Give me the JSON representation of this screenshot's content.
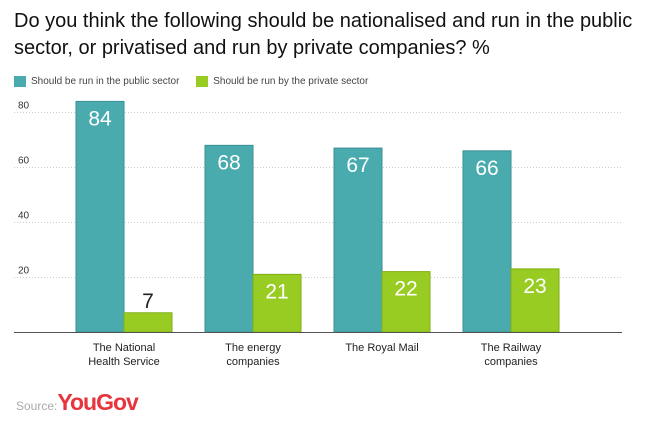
{
  "chart_data": {
    "type": "bar",
    "title": "Do you think the following should be nationalised and run in the public sector, or privatised and run by private companies? %",
    "categories": [
      [
        "The National",
        "Health Service"
      ],
      [
        "The energy",
        "companies"
      ],
      [
        "The Royal Mail"
      ],
      [
        "The Railway",
        "companies"
      ]
    ],
    "series": [
      {
        "name": "Should be run in the public sector",
        "color": "#4aabaf",
        "values": [
          84,
          68,
          67,
          66
        ]
      },
      {
        "name": "Should be run by the private sector",
        "color": "#99cc22",
        "values": [
          7,
          21,
          22,
          23
        ]
      }
    ],
    "yticks": [
      20,
      40,
      60,
      80
    ],
    "ylim": [
      0,
      90
    ],
    "xlabel": "",
    "ylabel": "",
    "grid": true,
    "legend": "top-left"
  },
  "source": {
    "label": "Source:",
    "brand": "YouGov"
  }
}
